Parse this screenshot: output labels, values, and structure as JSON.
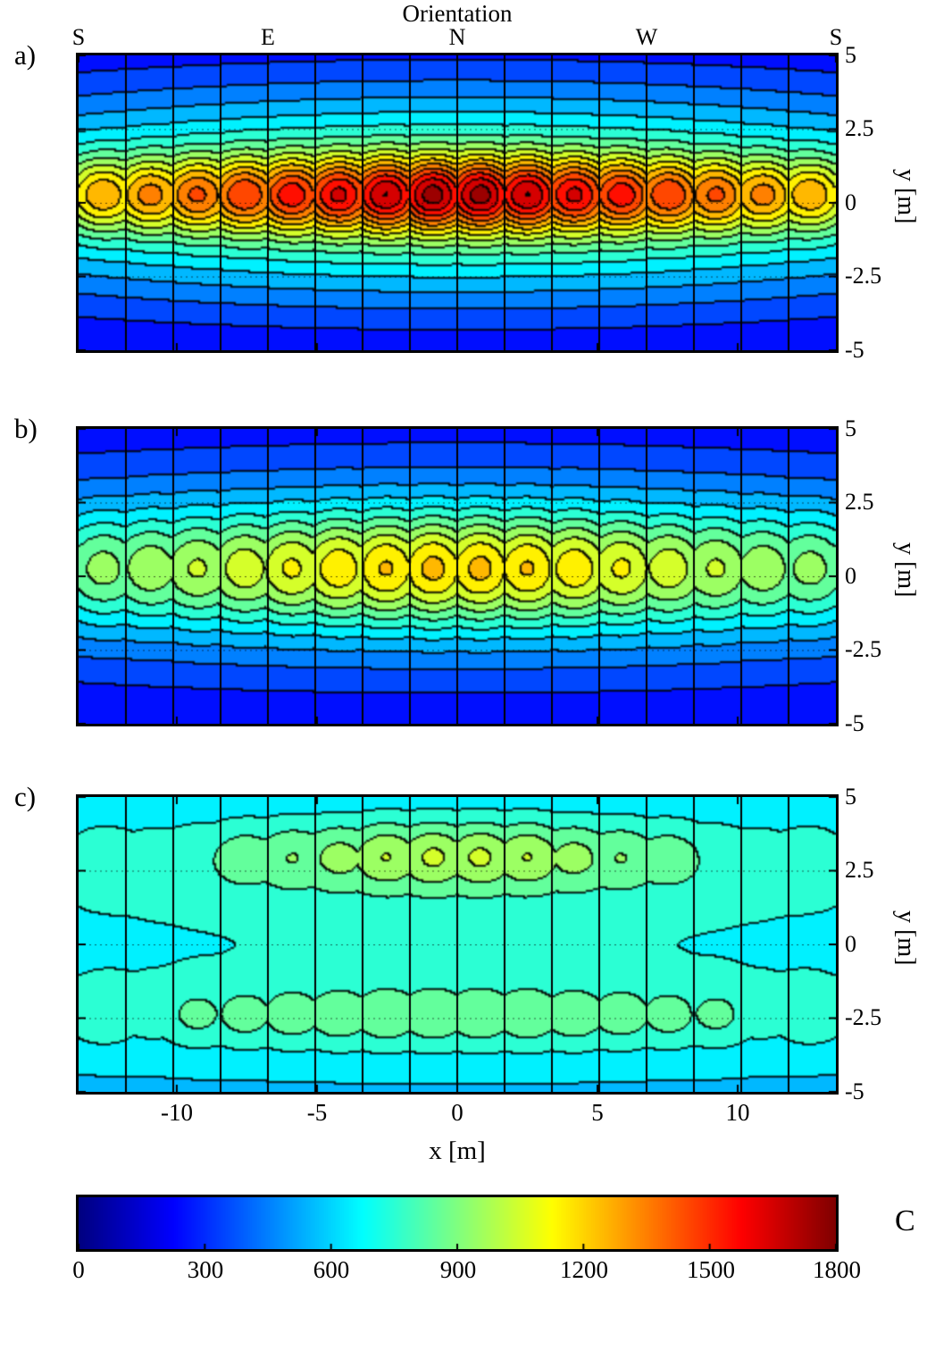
{
  "figure": {
    "title": "Orientation",
    "orientation_axis": {
      "tick_labels": [
        "S",
        "E",
        "N",
        "W",
        "S"
      ],
      "positions": [
        -13.5,
        -6.75,
        0,
        6.75,
        13.5
      ]
    },
    "panels": [
      {
        "label": "a)"
      },
      {
        "label": "b)"
      },
      {
        "label": "c)"
      }
    ],
    "x_axis": {
      "label": "x [m]",
      "tick_labels": [
        "-10",
        "-5",
        "0",
        "5",
        "10"
      ],
      "ticks": [
        -10,
        -5,
        0,
        5,
        10
      ],
      "range": [
        -13.5,
        13.5
      ]
    },
    "y_axis": {
      "label": "y [m]",
      "tick_labels": [
        "5",
        "2.5",
        "0",
        "-2.5",
        "-5"
      ],
      "ticks": [
        5,
        2.5,
        0,
        -2.5,
        -5
      ],
      "range": [
        -5,
        5
      ]
    },
    "colorbar": {
      "label": "C",
      "tick_labels": [
        "0",
        "300",
        "600",
        "900",
        "1200",
        "1500",
        "1800"
      ],
      "ticks": [
        0,
        300,
        600,
        900,
        1200,
        1500,
        1800
      ],
      "range": [
        0,
        1800
      ],
      "colormap": "jet"
    }
  },
  "chart_data": [
    {
      "panel": "a",
      "type": "heatmap",
      "colormap": "jet",
      "units": "C",
      "x_range": [
        -13.5,
        13.5
      ],
      "y_range": [
        -5,
        5
      ],
      "value_range": [
        0,
        1800
      ],
      "level_step": 100,
      "n_columns": 16,
      "dotted_y": [
        2.5,
        0,
        -2.5
      ],
      "base": 120,
      "bands": [
        {
          "y": 0.25,
          "sy": 2.6,
          "sx": 18,
          "amp": 850
        }
      ],
      "blob_rows": [
        {
          "y": 0.25,
          "sx": 1.0,
          "sy": 0.9,
          "amps": [
            500,
            520,
            560,
            600,
            640,
            680,
            740,
            780,
            780,
            740,
            680,
            640,
            600,
            560,
            520,
            500
          ]
        }
      ],
      "peak_estimate": 1750,
      "grid_sample": {
        "x": [
          -12,
          -8,
          -4,
          0,
          4,
          8,
          12
        ],
        "y": [
          5,
          2.5,
          0,
          -2.5,
          -5
        ],
        "values": [
          [
            240,
            270,
            290,
            300,
            290,
            270,
            240
          ],
          [
            620,
            760,
            830,
            860,
            830,
            760,
            620
          ],
          [
            1280,
            1480,
            1650,
            1750,
            1650,
            1480,
            1280
          ],
          [
            620,
            760,
            830,
            860,
            830,
            760,
            620
          ],
          [
            240,
            270,
            290,
            300,
            290,
            270,
            240
          ]
        ]
      }
    },
    {
      "panel": "b",
      "type": "heatmap",
      "colormap": "jet",
      "units": "C",
      "x_range": [
        -13.5,
        13.5
      ],
      "y_range": [
        -5,
        5
      ],
      "value_range": [
        0,
        1800
      ],
      "level_step": 100,
      "n_columns": 16,
      "dotted_y": [
        2.5,
        0,
        -2.5
      ],
      "base": 150,
      "bands": [
        {
          "y": 0.25,
          "sy": 2.6,
          "sx": 20,
          "amp": 560
        }
      ],
      "blob_rows": [
        {
          "y": 0.25,
          "sx": 1.15,
          "sy": 1.3,
          "amps": [
            330,
            340,
            360,
            390,
            430,
            470,
            505,
            520,
            520,
            505,
            470,
            430,
            390,
            360,
            340,
            330
          ]
        }
      ],
      "peak_estimate": 1230,
      "grid_sample": {
        "x": [
          -12,
          -8,
          -4,
          0,
          4,
          8,
          12
        ],
        "y": [
          5,
          2.5,
          0,
          -2.5,
          -5
        ],
        "values": [
          [
            230,
            250,
            260,
            270,
            260,
            250,
            230
          ],
          [
            520,
            600,
            640,
            660,
            640,
            600,
            520
          ],
          [
            900,
            1050,
            1180,
            1230,
            1180,
            1050,
            900
          ],
          [
            520,
            600,
            640,
            660,
            640,
            600,
            520
          ],
          [
            230,
            250,
            260,
            270,
            260,
            250,
            230
          ]
        ]
      }
    },
    {
      "panel": "c",
      "type": "heatmap",
      "colormap": "jet",
      "units": "C",
      "x_range": [
        -13.5,
        13.5
      ],
      "y_range": [
        -5,
        5
      ],
      "value_range": [
        0,
        1800
      ],
      "level_step": 100,
      "n_columns": 16,
      "dotted_y": [
        2.5,
        0,
        -2.5
      ],
      "base": 540,
      "bands": [
        {
          "y": 0.25,
          "sy": 3.2,
          "sx": 40,
          "amp": 150
        },
        {
          "y": 3.0,
          "sy": 1.25,
          "sx": 9,
          "amp": 160
        },
        {
          "y": -2.5,
          "sy": 1.15,
          "sx": 9.5,
          "amp": 100
        }
      ],
      "blob_rows": [
        {
          "y": 3.0,
          "sx": 0.9,
          "sy": 0.8,
          "amps": [
            90,
            50,
            60,
            110,
            130,
            150,
            205,
            215,
            215,
            205,
            150,
            130,
            110,
            60,
            50,
            90
          ]
        },
        {
          "y": -2.5,
          "sx": 0.9,
          "sy": 0.75,
          "amps": [
            115,
            60,
            125,
            130,
            135,
            140,
            145,
            145,
            145,
            145,
            140,
            135,
            130,
            125,
            60,
            115
          ]
        }
      ],
      "peak_estimate": 1010,
      "grid_sample": {
        "x": [
          -12,
          -8,
          -4,
          0,
          4,
          8,
          12
        ],
        "y": [
          5,
          2.5,
          0,
          -2.5,
          -5
        ],
        "values": [
          [
            580,
            590,
            600,
            600,
            600,
            590,
            580
          ],
          [
            680,
            800,
            900,
            960,
            900,
            800,
            680
          ],
          [
            640,
            670,
            690,
            690,
            690,
            670,
            640
          ],
          [
            700,
            820,
            870,
            870,
            870,
            820,
            700
          ],
          [
            580,
            590,
            600,
            600,
            600,
            590,
            580
          ]
        ]
      }
    }
  ]
}
